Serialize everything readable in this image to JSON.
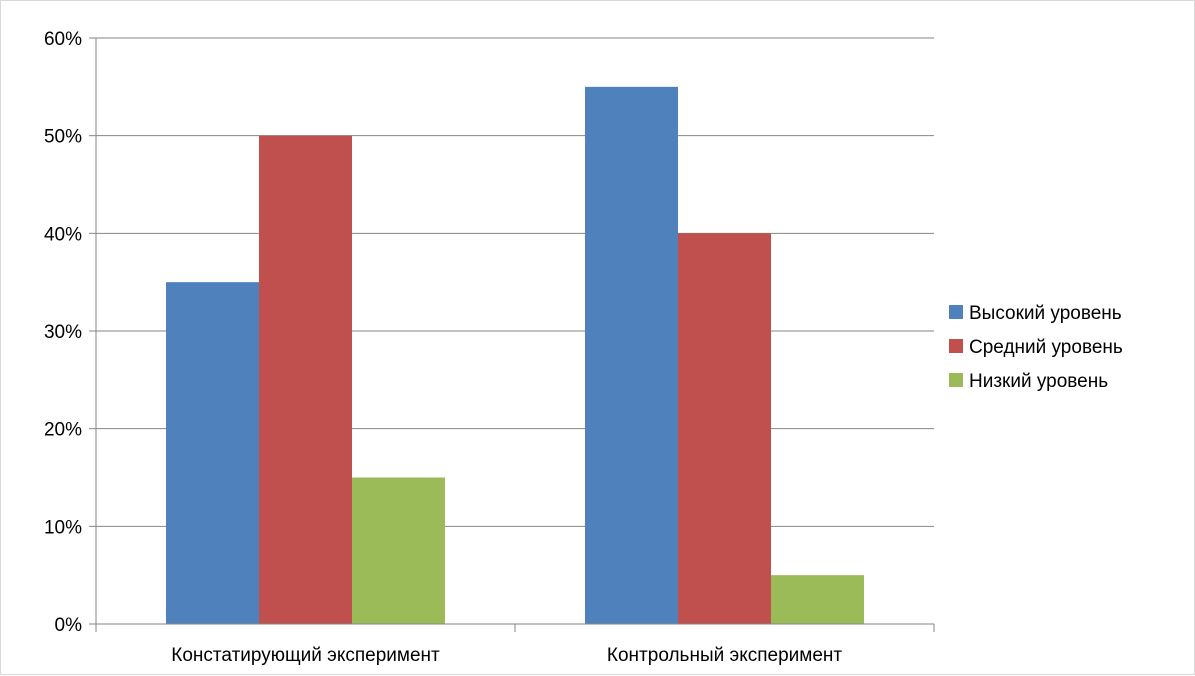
{
  "chart_data": {
    "type": "bar",
    "categories": [
      "Констатирующий эксперимент",
      "Контрольный эксперимент"
    ],
    "series": [
      {
        "name": "Высокий уровень",
        "color": "#4f81bd",
        "values": [
          35,
          55
        ]
      },
      {
        "name": "Средний уровень",
        "color": "#c0504d",
        "values": [
          50,
          40
        ]
      },
      {
        "name": "Низкий уровень",
        "color": "#9bbb59",
        "values": [
          15,
          5
        ]
      }
    ],
    "yticks": [
      "0%",
      "10%",
      "20%",
      "30%",
      "40%",
      "50%",
      "60%"
    ],
    "ylim": [
      0,
      60
    ],
    "grid": true,
    "legend_position": "right"
  }
}
